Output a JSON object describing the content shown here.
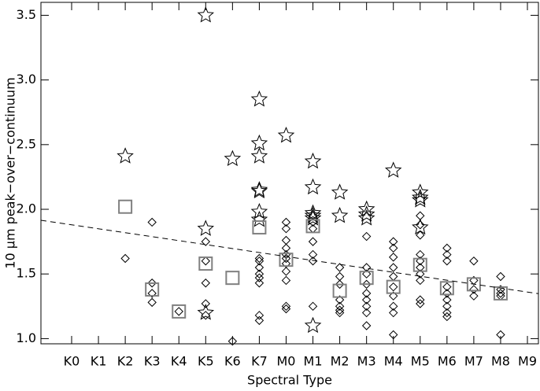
{
  "chart_data": {
    "type": "scatter",
    "xlabel": "Spectral Type",
    "ylabel": "10 μm peak−over−continuum",
    "categories": [
      "K0",
      "K1",
      "K2",
      "K3",
      "K4",
      "K5",
      "K6",
      "K7",
      "M0",
      "M1",
      "M2",
      "M3",
      "M4",
      "M5",
      "M6",
      "M7",
      "M8",
      "M9"
    ],
    "ylim": [
      0.96,
      3.6
    ],
    "yticks": [
      {
        "value": 1.0,
        "label": "1.0"
      },
      {
        "value": 1.5,
        "label": "1.5"
      },
      {
        "value": 2.0,
        "label": "2.0"
      },
      {
        "value": 2.5,
        "label": "2.5"
      },
      {
        "value": 3.0,
        "label": "3.0"
      },
      {
        "value": 3.5,
        "label": "3.5"
      }
    ],
    "series": [
      {
        "marker": "star",
        "color": "#000000",
        "x": [
          "K2",
          "K5",
          "K5",
          "K5",
          "K6",
          "K7",
          "K7",
          "K7",
          "K7",
          "K7",
          "K7",
          "K7",
          "M0",
          "M1",
          "M1",
          "M1",
          "M1",
          "M1",
          "M1",
          "M2",
          "M2",
          "M3",
          "M3",
          "M3",
          "M4",
          "M5",
          "M5",
          "M5",
          "M5"
        ],
        "values": [
          2.41,
          3.5,
          1.85,
          1.2,
          2.39,
          2.85,
          2.51,
          2.41,
          2.15,
          2.14,
          1.98,
          1.92,
          2.57,
          2.37,
          2.17,
          1.97,
          1.95,
          1.93,
          1.1,
          2.13,
          1.95,
          2.0,
          1.96,
          1.93,
          2.3,
          2.13,
          2.09,
          2.07,
          1.86
        ]
      },
      {
        "marker": "diamond",
        "color": "#000000",
        "x": [
          "K2",
          "K3",
          "K3",
          "K3",
          "K3",
          "K4",
          "K5",
          "K5",
          "K5",
          "K5",
          "K5",
          "K6",
          "K7",
          "K7",
          "K7",
          "K7",
          "K7",
          "K7",
          "K7",
          "K7",
          "M0",
          "M0",
          "M0",
          "M0",
          "M0",
          "M0",
          "M0",
          "M0",
          "M0",
          "M0",
          "M0",
          "M1",
          "M1",
          "M1",
          "M1",
          "M1",
          "M1",
          "M1",
          "M2",
          "M2",
          "M2",
          "M2",
          "M2",
          "M2",
          "M2",
          "M3",
          "M3",
          "M3",
          "M3",
          "M3",
          "M3",
          "M3",
          "M3",
          "M3",
          "M4",
          "M4",
          "M4",
          "M4",
          "M4",
          "M4",
          "M4",
          "M4",
          "M4",
          "M4",
          "M5",
          "M5",
          "M5",
          "M5",
          "M5",
          "M5",
          "M5",
          "M5",
          "M5",
          "M5",
          "M6",
          "M6",
          "M6",
          "M6",
          "M6",
          "M6",
          "M6",
          "M6",
          "M6",
          "M7",
          "M7",
          "M7",
          "M7",
          "M8",
          "M8",
          "M8",
          "M8",
          "M8"
        ],
        "values": [
          1.62,
          1.9,
          1.43,
          1.35,
          1.28,
          1.21,
          1.75,
          1.6,
          1.43,
          1.27,
          1.18,
          0.98,
          1.62,
          1.6,
          1.55,
          1.5,
          1.47,
          1.43,
          1.18,
          1.14,
          1.9,
          1.85,
          1.76,
          1.7,
          1.65,
          1.62,
          1.58,
          1.52,
          1.45,
          1.25,
          1.23,
          1.95,
          1.9,
          1.85,
          1.75,
          1.65,
          1.6,
          1.25,
          1.55,
          1.48,
          1.42,
          1.3,
          1.25,
          1.22,
          1.2,
          1.79,
          1.55,
          1.5,
          1.42,
          1.35,
          1.3,
          1.25,
          1.2,
          1.1,
          1.75,
          1.7,
          1.63,
          1.55,
          1.48,
          1.4,
          1.33,
          1.25,
          1.2,
          1.03,
          1.95,
          1.88,
          1.8,
          1.65,
          1.6,
          1.55,
          1.5,
          1.45,
          1.3,
          1.27,
          1.7,
          1.65,
          1.6,
          1.4,
          1.35,
          1.3,
          1.25,
          1.2,
          1.17,
          1.6,
          1.45,
          1.38,
          1.33,
          1.48,
          1.38,
          1.35,
          1.33,
          1.03
        ]
      },
      {
        "marker": "square",
        "color": "#808080",
        "x": [
          "K2",
          "K3",
          "K4",
          "K5",
          "K6",
          "K7",
          "M0",
          "M1",
          "M2",
          "M3",
          "M4",
          "M5",
          "M6",
          "M7",
          "M8"
        ],
        "values": [
          2.02,
          1.38,
          1.21,
          1.58,
          1.47,
          1.86,
          1.61,
          1.87,
          1.37,
          1.47,
          1.4,
          1.57,
          1.39,
          1.42,
          1.35
        ]
      },
      {
        "type": "line",
        "style": "dashed",
        "color": "#000000",
        "x": [
          "K0",
          "M9"
        ],
        "values": [
          1.88,
          1.36
        ]
      }
    ]
  }
}
